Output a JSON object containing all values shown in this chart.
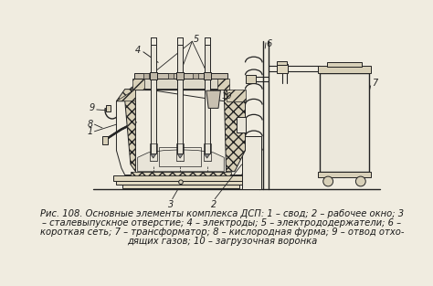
{
  "bg_color": "#f0ece0",
  "caption_line1": "Рис. 108. Основные элементы комплекса ДСП: 1 – свод; 2 – рабочее окно; 3",
  "caption_line2": "– сталевыпускное отверстие; 4 – электроды; 5 – электрододержатели; 6 –",
  "caption_line3": "короткая сеть; 7 – трансформатор; 8 – кислородная фурма; 9 – отвод отхо-",
  "caption_line4": "дящих газов; 10 – загрузочная воронка",
  "font_size": 7.2,
  "title_color": "#1a1a1a",
  "line_color": "#222222",
  "hatch_color": "#888888",
  "fill_light": "#e8e4d8",
  "fill_mid": "#d0caba"
}
